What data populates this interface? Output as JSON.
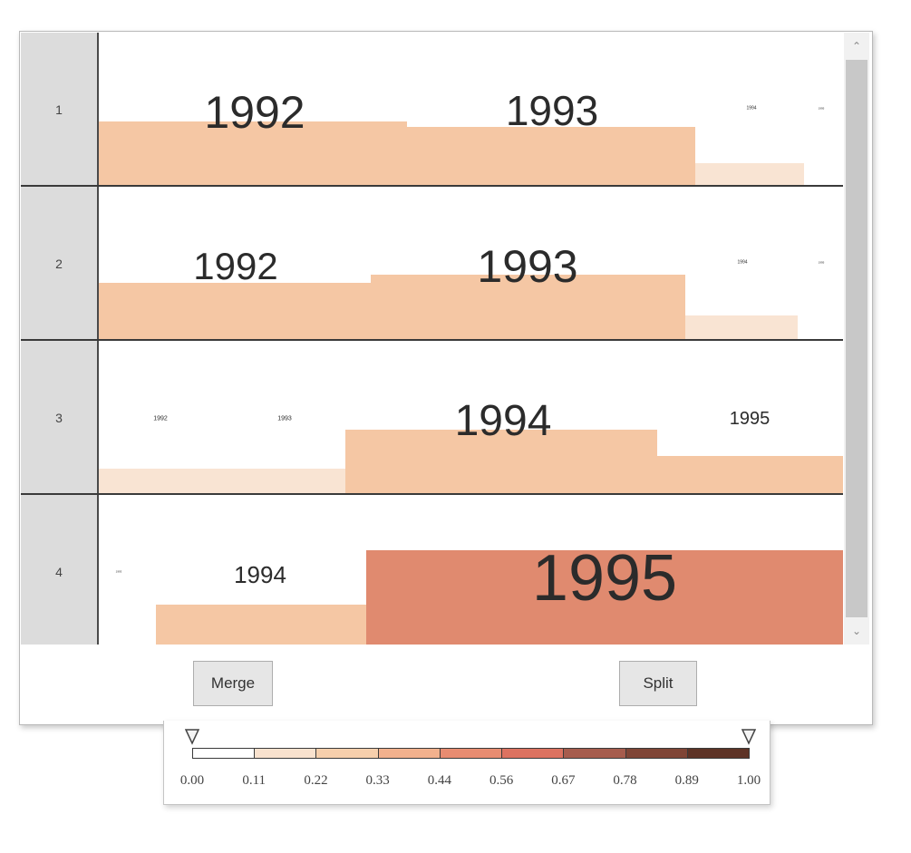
{
  "rows": [
    {
      "label": "1",
      "bars": [
        {
          "l": 0,
          "t": 98,
          "w": 340,
          "h": 72,
          "c": "#f5c7a4"
        },
        {
          "l": 340,
          "t": 104,
          "w": 318,
          "h": 66,
          "c": "#f5c7a4"
        },
        {
          "l": 658,
          "t": 144,
          "w": 120,
          "h": 26,
          "c": "#f9e4d3"
        }
      ],
      "labels": [
        {
          "text": "1992",
          "x": 172,
          "y": 88,
          "fs": 50
        },
        {
          "text": "1993",
          "x": 500,
          "y": 86,
          "fs": 46
        },
        {
          "text": "1994",
          "x": 720,
          "y": 84,
          "fs": 5
        },
        {
          "text": "1995",
          "x": 797,
          "y": 84,
          "fs": 3
        }
      ]
    },
    {
      "label": "2",
      "bars": [
        {
          "l": 0,
          "t": 106,
          "w": 300,
          "h": 64,
          "c": "#f5c7a4"
        },
        {
          "l": 300,
          "t": 97,
          "w": 347,
          "h": 73,
          "c": "#f5c7a4"
        },
        {
          "l": 647,
          "t": 142,
          "w": 124,
          "h": 28,
          "c": "#f9e4d3"
        }
      ],
      "labels": [
        {
          "text": "1992",
          "x": 151,
          "y": 88,
          "fs": 42
        },
        {
          "text": "1993",
          "x": 473,
          "y": 88,
          "fs": 50
        },
        {
          "text": "1994",
          "x": 710,
          "y": 84,
          "fs": 5
        },
        {
          "text": "1995",
          "x": 797,
          "y": 84,
          "fs": 3
        }
      ]
    },
    {
      "label": "3",
      "bars": [
        {
          "l": 0,
          "t": 141,
          "w": 272,
          "h": 29,
          "c": "#f9e4d3"
        },
        {
          "l": 272,
          "t": 98,
          "w": 344,
          "h": 72,
          "c": "#f5c7a4"
        },
        {
          "l": 616,
          "t": 127,
          "w": 205,
          "h": 43,
          "c": "#f5c7a4"
        }
      ],
      "labels": [
        {
          "text": "1992",
          "x": 68,
          "y": 86,
          "fs": 7
        },
        {
          "text": "1993",
          "x": 205,
          "y": 86,
          "fs": 7
        },
        {
          "text": "1994",
          "x": 446,
          "y": 89,
          "fs": 48
        },
        {
          "text": "1995",
          "x": 718,
          "y": 86,
          "fs": 20
        }
      ]
    },
    {
      "label": "4",
      "bars": [
        {
          "l": 63,
          "t": 121,
          "w": 232,
          "h": 49,
          "c": "#f5c7a4"
        },
        {
          "l": 295,
          "t": 61,
          "w": 526,
          "h": 109,
          "c": "#e08a6f"
        }
      ],
      "labels": [
        {
          "text": "1993",
          "x": 22,
          "y": 85,
          "fs": 3
        },
        {
          "text": "1994",
          "x": 178,
          "y": 88,
          "fs": 26
        },
        {
          "text": "1995",
          "x": 558,
          "y": 92,
          "fs": 72
        }
      ]
    }
  ],
  "buttons": {
    "merge": "Merge",
    "split": "Split"
  },
  "legend": {
    "colors": [
      "#ffffff",
      "#f9e2ce",
      "#f6cfac",
      "#f2b18d",
      "#e88c71",
      "#dc7260",
      "#a65c4d",
      "#7f4536",
      "#5d3326"
    ],
    "ticks": [
      "0.00",
      "0.11",
      "0.22",
      "0.33",
      "0.44",
      "0.56",
      "0.67",
      "0.78",
      "0.89",
      "1.00"
    ],
    "min_handle": "0.00",
    "max_handle": "1.00"
  },
  "icons": {
    "scroll_up": "chevron-up-icon",
    "scroll_down": "chevron-down-icon",
    "handle": "triangle-down-icon"
  }
}
